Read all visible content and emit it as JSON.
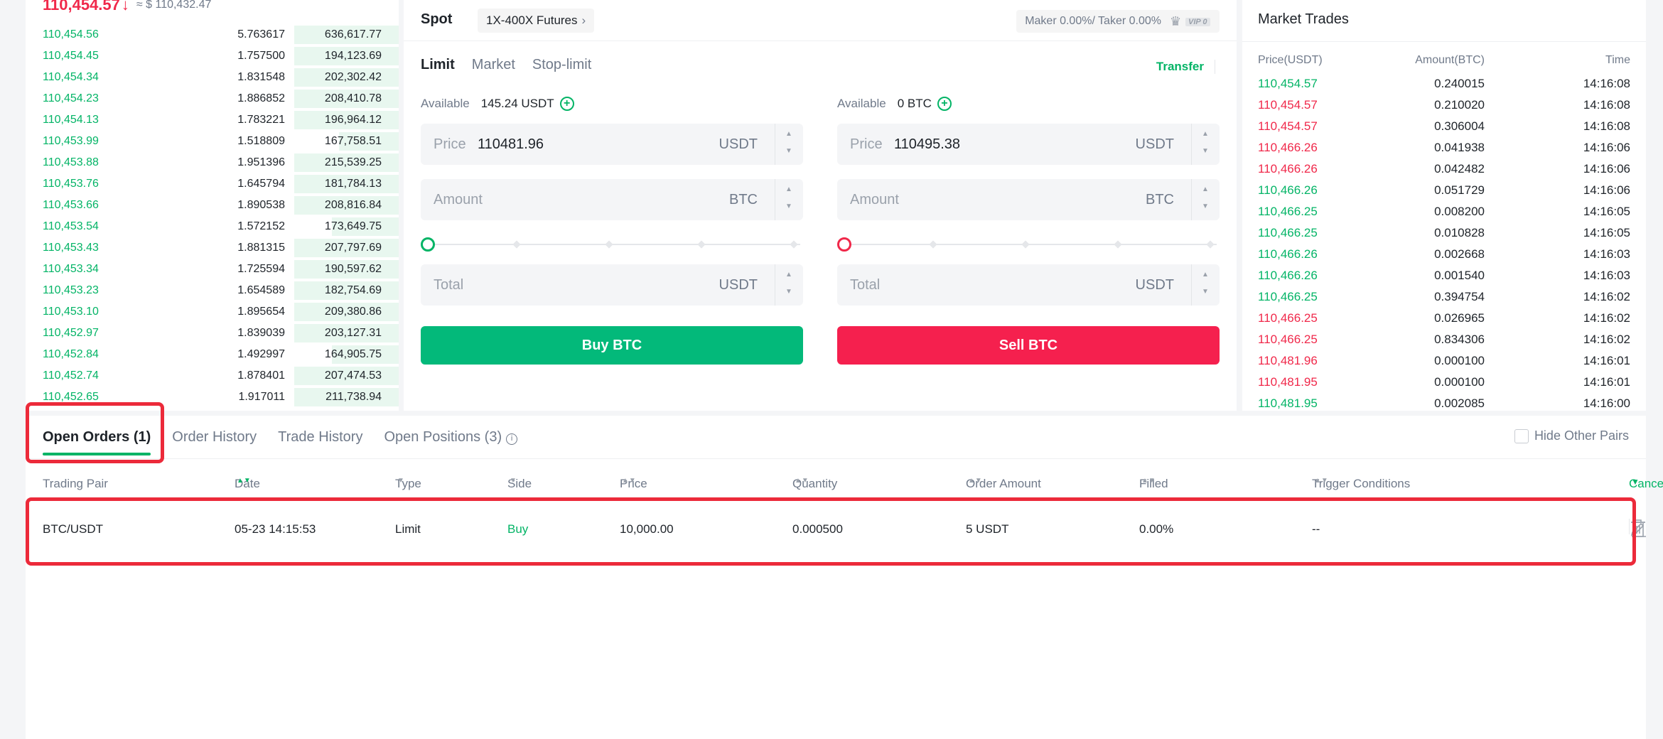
{
  "orderbook": {
    "last_price": "110,454.57",
    "arrow": "↓",
    "usd_price": "≈ $ 110,432.47",
    "rows": [
      {
        "price": "110,454.56",
        "amount": "5.763617",
        "total": "636,617.77",
        "depth": 0.28
      },
      {
        "price": "110,454.45",
        "amount": "1.757500",
        "total": "194,123.69",
        "depth": 0.28
      },
      {
        "price": "110,454.34",
        "amount": "1.831548",
        "total": "202,302.42",
        "depth": 0.28
      },
      {
        "price": "110,454.23",
        "amount": "1.886852",
        "total": "208,410.78",
        "depth": 0.28
      },
      {
        "price": "110,454.13",
        "amount": "1.783221",
        "total": "196,964.12",
        "depth": 0.28
      },
      {
        "price": "110,453.99",
        "amount": "1.518809",
        "total": "167,758.51",
        "depth": 0.16
      },
      {
        "price": "110,453.88",
        "amount": "1.951396",
        "total": "215,539.25",
        "depth": 0.28
      },
      {
        "price": "110,453.76",
        "amount": "1.645794",
        "total": "181,784.13",
        "depth": 0.28
      },
      {
        "price": "110,453.66",
        "amount": "1.890538",
        "total": "208,816.84",
        "depth": 0.28
      },
      {
        "price": "110,453.54",
        "amount": "1.572152",
        "total": "173,649.75",
        "depth": 0.18
      },
      {
        "price": "110,453.43",
        "amount": "1.881315",
        "total": "207,797.69",
        "depth": 0.28
      },
      {
        "price": "110,453.34",
        "amount": "1.725594",
        "total": "190,597.62",
        "depth": 0.28
      },
      {
        "price": "110,453.23",
        "amount": "1.654589",
        "total": "182,754.69",
        "depth": 0.28
      },
      {
        "price": "110,453.10",
        "amount": "1.895654",
        "total": "209,380.86",
        "depth": 0.28
      },
      {
        "price": "110,452.97",
        "amount": "1.839039",
        "total": "203,127.31",
        "depth": 0.28
      },
      {
        "price": "110,452.84",
        "amount": "1.492997",
        "total": "164,905.75",
        "depth": 0.18
      },
      {
        "price": "110,452.74",
        "amount": "1.878401",
        "total": "207,474.53",
        "depth": 0.28
      },
      {
        "price": "110,452.65",
        "amount": "1.917011",
        "total": "211,738.94",
        "depth": 0.28
      }
    ]
  },
  "trade": {
    "spot_label": "Spot",
    "futures_label": "1X-400X Futures",
    "chevron": "›",
    "fee_text": "Maker 0.00%/ Taker 0.00%",
    "vip_text": "VIP 0",
    "tabs": [
      "Limit",
      "Market",
      "Stop-limit"
    ],
    "transfer": "Transfer",
    "buy": {
      "available_label": "Available",
      "available_value": "145.24 USDT",
      "price_label": "Price",
      "price_value": "110481.96",
      "price_unit": "USDT",
      "amount_label": "Amount",
      "amount_unit": "BTC",
      "total_label": "Total",
      "total_unit": "USDT",
      "button": "Buy BTC"
    },
    "sell": {
      "available_label": "Available",
      "available_value": "0 BTC",
      "price_label": "Price",
      "price_value": "110495.38",
      "price_unit": "USDT",
      "amount_label": "Amount",
      "amount_unit": "BTC",
      "total_label": "Total",
      "total_unit": "USDT",
      "button": "Sell BTC"
    }
  },
  "market_trades": {
    "title": "Market Trades",
    "headers": {
      "price": "Price(USDT)",
      "amount": "Amount(BTC)",
      "time": "Time"
    },
    "rows": [
      {
        "price": "110,454.57",
        "amount": "0.240015",
        "time": "14:16:08",
        "side": "buy"
      },
      {
        "price": "110,454.57",
        "amount": "0.210020",
        "time": "14:16:08",
        "side": "sell"
      },
      {
        "price": "110,454.57",
        "amount": "0.306004",
        "time": "14:16:08",
        "side": "sell"
      },
      {
        "price": "110,466.26",
        "amount": "0.041938",
        "time": "14:16:06",
        "side": "sell"
      },
      {
        "price": "110,466.26",
        "amount": "0.042482",
        "time": "14:16:06",
        "side": "sell"
      },
      {
        "price": "110,466.26",
        "amount": "0.051729",
        "time": "14:16:06",
        "side": "buy"
      },
      {
        "price": "110,466.25",
        "amount": "0.008200",
        "time": "14:16:05",
        "side": "buy"
      },
      {
        "price": "110,466.25",
        "amount": "0.010828",
        "time": "14:16:05",
        "side": "buy"
      },
      {
        "price": "110,466.26",
        "amount": "0.002668",
        "time": "14:16:03",
        "side": "buy"
      },
      {
        "price": "110,466.26",
        "amount": "0.001540",
        "time": "14:16:03",
        "side": "buy"
      },
      {
        "price": "110,466.25",
        "amount": "0.394754",
        "time": "14:16:02",
        "side": "buy"
      },
      {
        "price": "110,466.25",
        "amount": "0.026965",
        "time": "14:16:02",
        "side": "sell"
      },
      {
        "price": "110,466.25",
        "amount": "0.834306",
        "time": "14:16:02",
        "side": "sell"
      },
      {
        "price": "110,481.96",
        "amount": "0.000100",
        "time": "14:16:01",
        "side": "sell"
      },
      {
        "price": "110,481.95",
        "amount": "0.000100",
        "time": "14:16:01",
        "side": "sell"
      },
      {
        "price": "110,481.95",
        "amount": "0.002085",
        "time": "14:16:00",
        "side": "buy"
      }
    ]
  },
  "orders": {
    "tabs": [
      "Open Orders (1)",
      "Order History",
      "Trade History",
      "Open Positions (3)"
    ],
    "info_glyph": "i",
    "hide_other_pairs": "Hide Other Pairs",
    "headers": {
      "pair": "Trading Pair",
      "date": "Date",
      "type": "Type",
      "side": "Side",
      "price": "Price",
      "quantity": "Quantity",
      "order_amount": "Order Amount",
      "filled": "Filled",
      "trigger": "Trigger Conditions",
      "cancel_all": "Cancel all"
    },
    "sort_glyph": "▲▼",
    "dropdown_glyph": "▼",
    "row": {
      "pair": "BTC/USDT",
      "date": "05-23 14:15:53",
      "type": "Limit",
      "side": "Buy",
      "price": "10,000.00",
      "quantity": "0.000500",
      "order_amount": "5 USDT",
      "filled": "0.00%",
      "trigger": "--"
    }
  },
  "colors": {
    "buy": "#03b466",
    "sell": "#f0284a",
    "highlight": "#ec2a3a"
  }
}
